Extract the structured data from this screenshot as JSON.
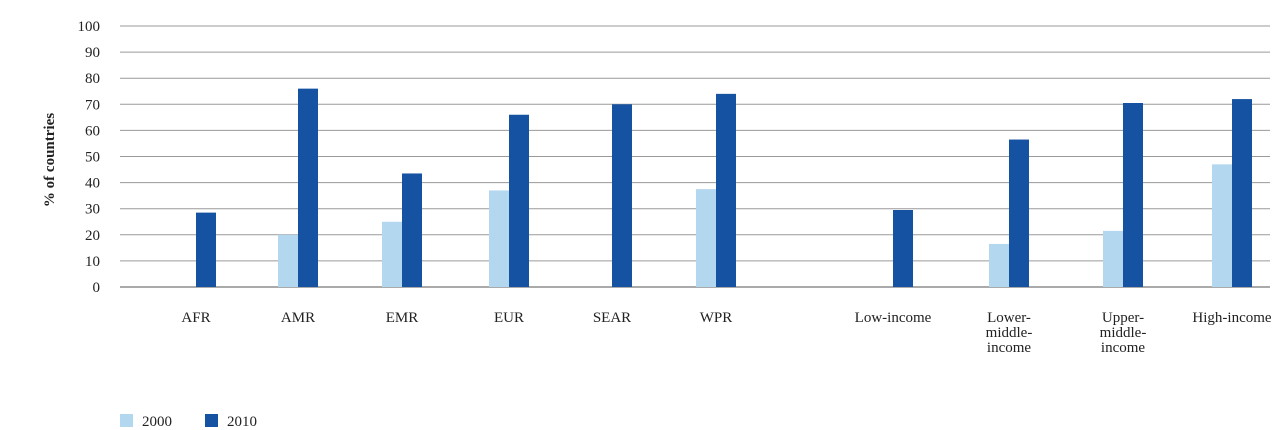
{
  "chart_data": {
    "type": "bar",
    "ylabel": "% of countries",
    "xlabel": "",
    "ylim": [
      0,
      100
    ],
    "yticks": [
      0,
      10,
      20,
      30,
      40,
      50,
      60,
      70,
      80,
      90,
      100
    ],
    "grid": true,
    "legend_position": "bottom-left",
    "categories": [
      [
        "AFR"
      ],
      [
        "AMR"
      ],
      [
        "EMR"
      ],
      [
        "EUR"
      ],
      [
        "SEAR"
      ],
      [
        "WPR"
      ],
      [
        "Low-income"
      ],
      [
        "Lower-",
        "middle-",
        "income"
      ],
      [
        "Upper-",
        "middle-",
        "income"
      ],
      [
        "High-income"
      ]
    ],
    "series": [
      {
        "name": "2000",
        "color": "#b4d7f0",
        "values": [
          0,
          20,
          25,
          37,
          0,
          37.5,
          0,
          16.5,
          21.5,
          47
        ]
      },
      {
        "name": "2010",
        "color": "#1552a2",
        "values": [
          28.5,
          76,
          43.5,
          66,
          70,
          74,
          29.5,
          56.5,
          70.5,
          72
        ]
      }
    ]
  }
}
